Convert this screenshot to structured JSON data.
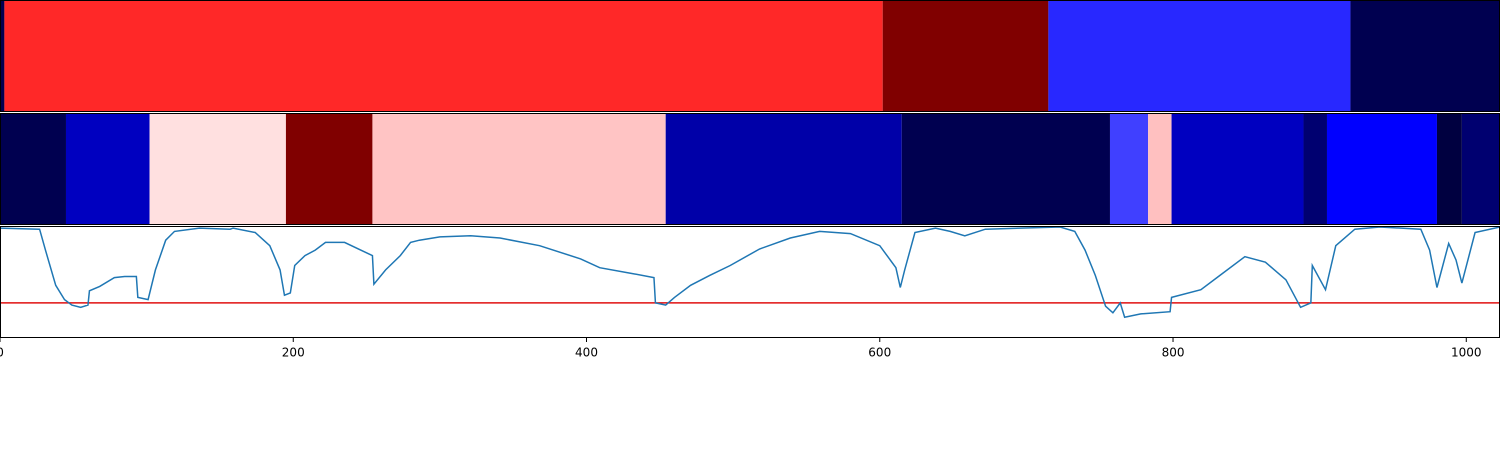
{
  "chart_data": [
    {
      "type": "segments",
      "xlim": [
        0,
        1023
      ],
      "bins": [
        0,
        3,
        602,
        715,
        921,
        1023
      ],
      "colors": [
        "#000050",
        "#ff2828",
        "#800000",
        "#2828ff",
        "#000050"
      ]
    },
    {
      "type": "segments",
      "xlim": [
        0,
        1023
      ],
      "bins": [
        0,
        45,
        102,
        195,
        254,
        454,
        615,
        757,
        783,
        799,
        889,
        905,
        980,
        997,
        1023
      ],
      "colors": [
        "#000050",
        "#0000c0",
        "#ffe0e0",
        "#800000",
        "#ffc4c4",
        "#0000a8",
        "#000050",
        "#4040ff",
        "#ffc0c0",
        "#0000c0",
        "#000070",
        "#0000ff",
        "#000040",
        "#000070"
      ]
    },
    {
      "type": "line",
      "xlim": [
        0,
        1023
      ],
      "ylim": [
        0,
        1
      ],
      "xticks": [
        0,
        200,
        400,
        600,
        800,
        1000
      ],
      "color": "#1f77b4",
      "hlines": [
        {
          "y": 0.31,
          "color": "#e01010"
        }
      ],
      "x": [
        0,
        27,
        31,
        38,
        44,
        49,
        55,
        60,
        61,
        68,
        78,
        85,
        93,
        94,
        101,
        106,
        113,
        119,
        136,
        157,
        159,
        174,
        184,
        191,
        194,
        198,
        201,
        208,
        215,
        222,
        235,
        246,
        254,
        255,
        263,
        273,
        280,
        286,
        300,
        321,
        341,
        368,
        396,
        409,
        430,
        446,
        447,
        454,
        460,
        471,
        484,
        498,
        518,
        539,
        559,
        580,
        600,
        611,
        614,
        617,
        624,
        638,
        648,
        658,
        672,
        723,
        733,
        740,
        747,
        754,
        759,
        764,
        767,
        778,
        798,
        799,
        819,
        832,
        849,
        863,
        877,
        887,
        894,
        895,
        904,
        911,
        924,
        941,
        969,
        975,
        980,
        988,
        993,
        997,
        1006,
        1023
      ],
      "values": [
        0.99,
        0.98,
        0.79,
        0.47,
        0.34,
        0.29,
        0.27,
        0.29,
        0.42,
        0.46,
        0.54,
        0.55,
        0.55,
        0.36,
        0.34,
        0.61,
        0.88,
        0.96,
        0.99,
        0.98,
        0.99,
        0.95,
        0.83,
        0.61,
        0.38,
        0.4,
        0.65,
        0.74,
        0.79,
        0.86,
        0.86,
        0.79,
        0.74,
        0.48,
        0.61,
        0.74,
        0.86,
        0.88,
        0.91,
        0.92,
        0.9,
        0.83,
        0.71,
        0.63,
        0.58,
        0.54,
        0.31,
        0.29,
        0.36,
        0.47,
        0.56,
        0.65,
        0.8,
        0.9,
        0.96,
        0.94,
        0.83,
        0.63,
        0.45,
        0.61,
        0.95,
        0.99,
        0.96,
        0.92,
        0.98,
        1.0,
        0.96,
        0.79,
        0.56,
        0.28,
        0.22,
        0.31,
        0.18,
        0.21,
        0.23,
        0.36,
        0.43,
        0.56,
        0.73,
        0.68,
        0.52,
        0.27,
        0.31,
        0.65,
        0.43,
        0.83,
        0.98,
        1.0,
        0.98,
        0.79,
        0.45,
        0.85,
        0.7,
        0.49,
        0.95,
        1.0
      ]
    }
  ]
}
